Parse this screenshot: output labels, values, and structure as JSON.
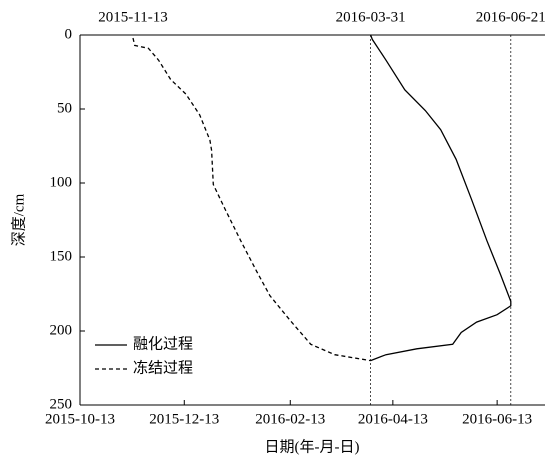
{
  "chart_data": {
    "type": "line",
    "x_label": "日期(年-月-日)",
    "y_label": "深度/cm",
    "xlim": [
      "2015-10-13",
      "2016-07-11"
    ],
    "xticks": [
      "2015-10-13",
      "2015-12-13",
      "2016-02-13",
      "2016-04-13",
      "2016-06-13"
    ],
    "ylim": [
      0,
      250
    ],
    "yticks": [
      0,
      50,
      100,
      150,
      200,
      250
    ],
    "y_inverted": true,
    "legend": "lower left",
    "annotations": [
      {
        "text": "2015-11-13"
      },
      {
        "text": "2016-03-31",
        "line": true
      },
      {
        "text": "2016-06-21",
        "line": true
      }
    ],
    "series": [
      {
        "name": "融化过程",
        "color": "#000000",
        "dash": false,
        "x": [
          "2016-03-31",
          "2016-04-01",
          "2016-04-09",
          "2016-04-20",
          "2016-05-02",
          "2016-05-11",
          "2016-05-20",
          "2016-05-29",
          "2016-06-07",
          "2016-06-15",
          "2016-06-21",
          "2016-06-21",
          "2016-06-13",
          "2016-06-01",
          "2016-05-23",
          "2016-05-18",
          "2016-04-27",
          "2016-04-09",
          "2016-03-31"
        ],
        "values": [
          0,
          3,
          17,
          37,
          51,
          64,
          84,
          111,
          139,
          162,
          180,
          183,
          189,
          194,
          201,
          209,
          212,
          216,
          220
        ]
      },
      {
        "name": "冻结过程",
        "color": "#000000",
        "dash": true,
        "x": [
          "2015-11-13",
          "2015-11-14",
          "2015-11-22",
          "2015-11-28",
          "2015-12-05",
          "2015-12-14",
          "2015-12-22",
          "2015-12-28",
          "2015-12-29",
          "2015-12-30",
          "2016-01-06",
          "2016-01-15",
          "2016-01-24",
          "2016-02-01",
          "2016-02-13",
          "2016-02-25",
          "2016-03-10",
          "2016-03-31"
        ],
        "values": [
          2,
          7,
          9,
          17,
          30,
          40,
          54,
          71,
          78,
          101,
          118,
          139,
          159,
          176,
          193,
          209,
          216,
          220
        ]
      }
    ]
  }
}
